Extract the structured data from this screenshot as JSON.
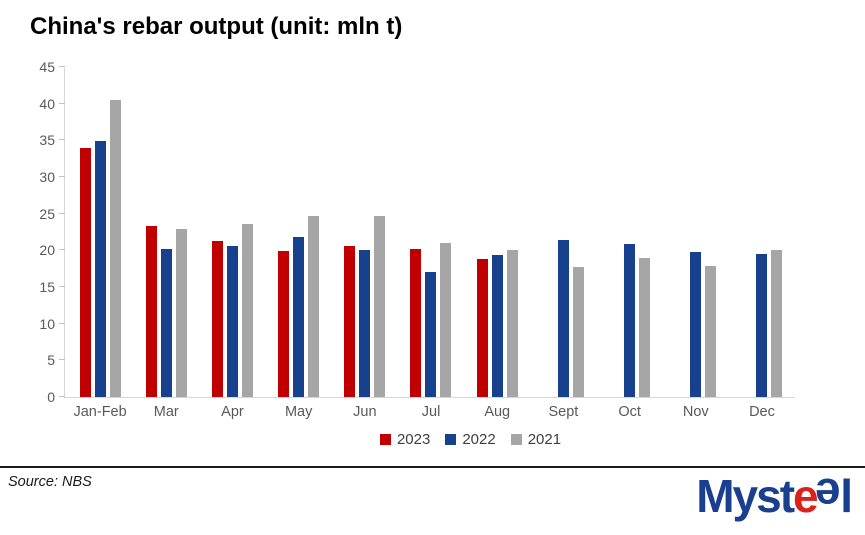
{
  "chart_data": {
    "type": "bar",
    "title": "China's rebar output (unit: mln t)",
    "categories": [
      "Jan-Feb",
      "Mar",
      "Apr",
      "May",
      "Jun",
      "Jul",
      "Aug",
      "Sept",
      "Oct",
      "Nov",
      "Dec"
    ],
    "series": [
      {
        "name": "2023",
        "color": "#c00000",
        "values": [
          33.99,
          23.34,
          21.26,
          19.95,
          20.61,
          20.22,
          18.81,
          null,
          null,
          null,
          null
        ]
      },
      {
        "name": "2022",
        "color": "#17418d",
        "values": [
          34.85,
          20.24,
          20.66,
          21.85,
          20.05,
          17.1,
          19.41,
          21.43,
          20.86,
          19.78,
          19.53
        ]
      },
      {
        "name": "2021",
        "color": "#a6a6a6",
        "values": [
          40.54,
          22.97,
          23.63,
          24.75,
          24.66,
          21.04,
          20.06,
          17.68,
          18.96,
          17.85,
          20.07
        ]
      }
    ],
    "ylim": [
      0,
      45
    ],
    "yticks": [
      0,
      5,
      10,
      15,
      20,
      25,
      30,
      35,
      40,
      45
    ],
    "xlabel": "",
    "ylabel": "",
    "grid": false,
    "legend_position": "bottom",
    "legend_entries": [
      "2023",
      "2022",
      "2021"
    ]
  },
  "footer": {
    "source": "Source: NBS",
    "logo": {
      "part_myst": "Myst",
      "part_e_red": "e",
      "part_e_blue": "e",
      "part_l": "l",
      "blue_color": "#1b3f8f",
      "red_color": "#db2118"
    }
  }
}
